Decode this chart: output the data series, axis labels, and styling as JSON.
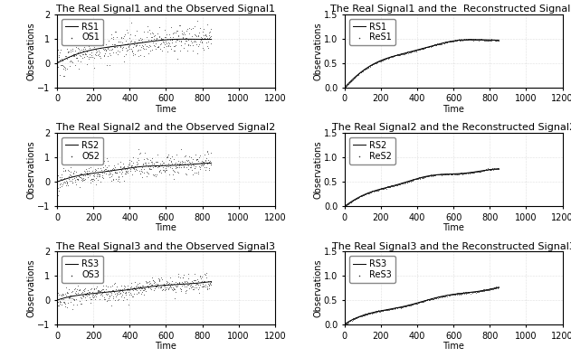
{
  "titles_left": [
    "The Real Signal1 and the Observed Signal1",
    "The Real Signal2 and the Observed Signal2",
    "The Real Signal3 and the Observed Signal3"
  ],
  "titles_right": [
    "The Real Signal1 and the  Reconstructed Signal1",
    "The Real Signal2 and the Reconstructed Signal2",
    "The Real Signal3 and the Reconstructed Signal3"
  ],
  "os_labels": [
    "OS1",
    "OS2",
    "OS3"
  ],
  "res_labels": [
    "ReS1",
    "ReS2",
    "ReS3"
  ],
  "rs_labels": [
    "RS1",
    "RS2",
    "RS3"
  ],
  "xlabel": "Time",
  "ylabel": "Observations",
  "xlim": [
    0,
    1200
  ],
  "ylim_left": [
    -1,
    2
  ],
  "ylim_right": [
    0,
    1.5
  ],
  "xticks": [
    0,
    200,
    400,
    600,
    800,
    1000,
    1200
  ],
  "yticks_left": [
    -1,
    0,
    1,
    2
  ],
  "yticks_right": [
    0,
    0.5,
    1.0,
    1.5
  ],
  "n_points": 850,
  "noise_scales": [
    0.28,
    0.22,
    0.18
  ],
  "signal_peaks": [
    1.05,
    0.82,
    0.78
  ],
  "line_color": "#000000",
  "dot_color": "#333333",
  "background_color": "#ffffff",
  "title_fontsize": 8,
  "label_fontsize": 7,
  "tick_fontsize": 7,
  "legend_fontsize": 7
}
